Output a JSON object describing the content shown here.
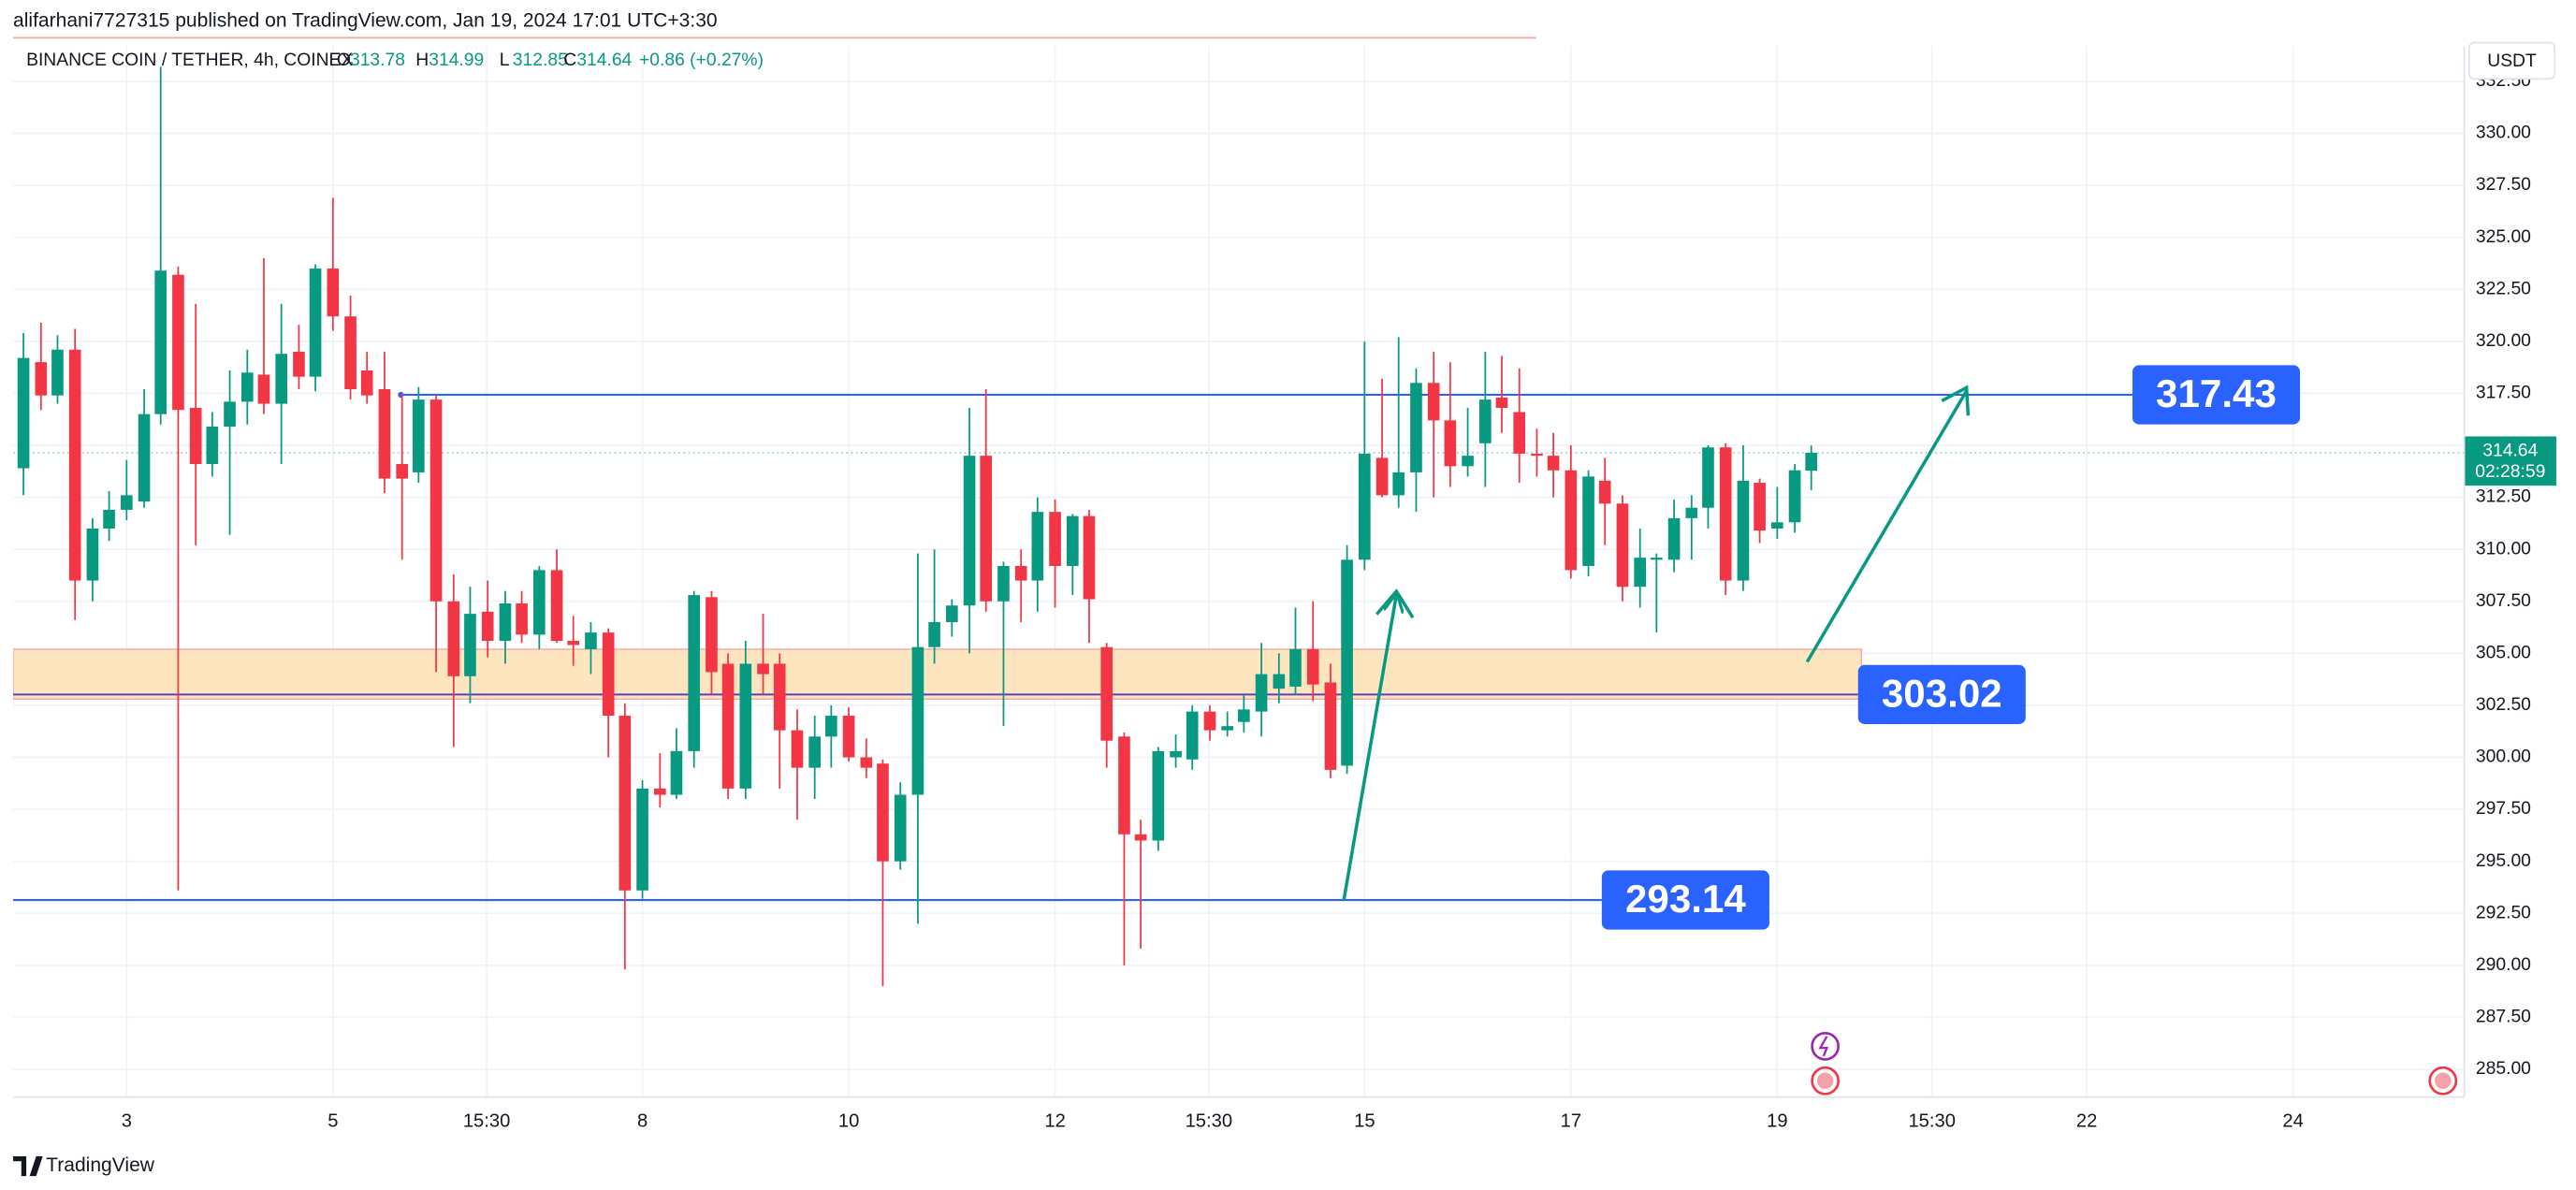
{
  "header": {
    "title": "alifarhani7727315 published on TradingView.com, Jan 19, 2024 17:01 UTC+3:30"
  },
  "chart_data": {
    "type": "candlestick",
    "symbol": "BINANCE COIN / TETHER, 4h, COINEX",
    "ohlc_legend": [
      {
        "label": "O",
        "value": 313.78
      },
      {
        "label": "H",
        "value": 314.99
      },
      {
        "label": "L",
        "value": 312.85
      },
      {
        "label": "C",
        "value": 314.64
      }
    ],
    "change": "+0.86 (+0.27%)",
    "currency": "USDT",
    "up_color": "#089981",
    "down_color": "#f23645",
    "x": [
      2,
      2.17,
      2.33,
      2.5,
      2.67,
      2.83,
      3,
      3.17,
      3.33,
      3.5,
      3.67,
      3.83,
      4,
      4.17,
      4.33,
      4.5,
      4.67,
      4.83,
      5,
      5.17,
      5.33,
      5.5,
      5.67,
      5.83,
      6,
      6.17,
      6.33,
      6.5,
      6.67,
      6.83,
      7,
      7.17,
      7.33,
      7.5,
      7.67,
      7.83,
      8,
      8.17,
      8.33,
      8.5,
      8.67,
      8.83,
      9,
      9.17,
      9.33,
      9.5,
      9.67,
      9.83,
      10,
      10.17,
      10.33,
      10.5,
      10.67,
      10.83,
      11,
      11.17,
      11.33,
      11.5,
      11.67,
      11.83,
      12,
      12.17,
      12.33,
      12.5,
      12.67,
      12.83,
      13,
      13.17,
      13.33,
      13.5,
      13.67,
      13.83,
      14,
      14.17,
      14.33,
      14.5,
      14.67,
      14.83,
      15,
      15.17,
      15.33,
      15.5,
      15.67,
      15.83,
      16,
      16.17,
      16.33,
      16.5,
      16.67,
      16.83,
      17,
      17.17,
      17.33,
      17.5,
      17.67,
      17.83,
      18,
      18.17,
      18.33,
      18.5,
      18.67,
      18.83,
      19,
      19.17,
      19.33
    ],
    "open": [
      313.9,
      319.0,
      317.4,
      319.6,
      308.5,
      311.0,
      311.9,
      312.3,
      316.5,
      323.2,
      316.8,
      314.1,
      315.9,
      317.1,
      318.4,
      317.0,
      319.5,
      318.3,
      323.5,
      321.2,
      318.6,
      317.7,
      314.1,
      313.7,
      317.2,
      307.5,
      303.9,
      307.0,
      305.6,
      307.4,
      305.9,
      309.0,
      305.6,
      305.2,
      306.0,
      302.0,
      293.6,
      298.5,
      298.2,
      300.3,
      307.7,
      304.5,
      298.5,
      304.5,
      304.5,
      301.3,
      299.5,
      301.0,
      302.0,
      300.0,
      299.7,
      295.0,
      298.2,
      305.3,
      306.5,
      307.3,
      314.5,
      307.5,
      309.2,
      308.5,
      311.8,
      309.2,
      311.6,
      305.3,
      301.0,
      296.3,
      296.0,
      300.0,
      299.9,
      302.2,
      301.3,
      301.7,
      302.2,
      303.3,
      303.4,
      305.2,
      303.6,
      299.6,
      309.5,
      314.4,
      312.6,
      313.7,
      318.0,
      316.2,
      314.0,
      315.1,
      317.3,
      316.6,
      314.6,
      314.5,
      313.8,
      309.2,
      313.3,
      312.2,
      308.2,
      309.5,
      309.5,
      311.5,
      312.0,
      314.9,
      308.5,
      313.2,
      311.0,
      311.3,
      313.78
    ],
    "high": [
      320.4,
      320.9,
      320.3,
      320.6,
      311.5,
      312.8,
      314.3,
      317.7,
      333.2,
      323.6,
      321.8,
      316.6,
      318.6,
      319.6,
      324.0,
      321.8,
      320.8,
      323.7,
      326.9,
      322.2,
      319.5,
      319.5,
      317.5,
      317.8,
      317.4,
      308.8,
      308.2,
      308.5,
      308.0,
      308.0,
      309.2,
      310.0,
      306.8,
      306.5,
      306.2,
      302.6,
      298.9,
      300.2,
      301.4,
      308.0,
      308.0,
      305.0,
      305.6,
      306.9,
      305.0,
      302.3,
      302.0,
      302.5,
      302.4,
      300.9,
      299.9,
      298.8,
      309.8,
      310.0,
      307.6,
      316.8,
      317.7,
      309.4,
      310.0,
      312.5,
      312.4,
      311.7,
      311.9,
      305.5,
      301.2,
      297.0,
      300.5,
      301.1,
      302.5,
      302.5,
      302.2,
      303.0,
      305.5,
      305.0,
      307.2,
      307.5,
      304.5,
      310.2,
      320.0,
      318.2,
      320.2,
      318.7,
      319.5,
      319.0,
      316.8,
      319.5,
      319.3,
      318.7,
      315.8,
      315.6,
      315.0,
      313.8,
      314.4,
      312.6,
      311.0,
      309.8,
      312.4,
      312.6,
      315.0,
      315.1,
      315.0,
      313.4,
      313.0,
      314.1,
      314.99
    ],
    "low": [
      312.6,
      316.7,
      317.0,
      306.6,
      307.5,
      310.4,
      311.4,
      312.0,
      316.0,
      293.6,
      310.2,
      313.5,
      310.7,
      316.0,
      316.5,
      314.1,
      317.7,
      317.6,
      320.5,
      317.2,
      317.0,
      312.7,
      309.5,
      313.2,
      304.1,
      300.5,
      302.6,
      304.8,
      304.5,
      305.5,
      305.2,
      305.5,
      304.4,
      304.0,
      300.0,
      289.8,
      293.2,
      297.6,
      298.0,
      299.5,
      303.0,
      298.0,
      298.0,
      303.0,
      298.5,
      297.0,
      298.0,
      299.5,
      299.8,
      299.0,
      289.0,
      294.6,
      292.0,
      304.5,
      305.8,
      305.0,
      307.0,
      301.5,
      306.5,
      307.0,
      307.2,
      307.8,
      305.5,
      299.5,
      290.0,
      290.8,
      295.5,
      299.5,
      299.4,
      300.8,
      301.0,
      301.2,
      301.0,
      302.6,
      303.0,
      302.7,
      299.0,
      299.2,
      309.0,
      312.5,
      312.0,
      311.8,
      312.5,
      313.0,
      313.5,
      313.0,
      315.6,
      313.2,
      313.5,
      312.5,
      308.6,
      308.7,
      310.2,
      307.5,
      307.2,
      306.0,
      308.9,
      309.5,
      311.0,
      307.8,
      308.0,
      310.3,
      310.5,
      310.8,
      312.85
    ],
    "close": [
      319.2,
      317.4,
      319.6,
      308.5,
      311.0,
      311.9,
      312.6,
      316.5,
      323.4,
      316.7,
      314.1,
      315.9,
      317.1,
      318.5,
      317.0,
      319.4,
      318.3,
      323.5,
      321.2,
      317.7,
      317.4,
      313.4,
      313.4,
      317.2,
      307.5,
      303.9,
      306.9,
      305.6,
      307.4,
      305.9,
      309.0,
      305.6,
      305.4,
      306.0,
      302.0,
      293.6,
      298.5,
      298.2,
      300.3,
      307.8,
      304.1,
      298.5,
      304.5,
      304.0,
      301.3,
      299.5,
      301.0,
      302.0,
      300.0,
      299.5,
      295.0,
      298.2,
      305.3,
      306.5,
      307.3,
      314.5,
      307.5,
      309.2,
      308.5,
      311.8,
      309.2,
      311.6,
      307.6,
      300.8,
      296.3,
      296.0,
      300.3,
      300.3,
      302.2,
      301.3,
      301.5,
      302.3,
      304.0,
      304.0,
      305.2,
      303.5,
      299.4,
      309.5,
      314.6,
      312.6,
      313.7,
      318.0,
      316.2,
      314.0,
      314.5,
      317.2,
      316.8,
      314.6,
      314.5,
      313.8,
      309.0,
      313.5,
      312.2,
      308.2,
      309.6,
      309.6,
      311.5,
      312.0,
      314.9,
      308.5,
      313.3,
      310.9,
      311.3,
      313.8,
      314.64
    ],
    "xlim": [
      1.9,
      25.66
    ],
    "xticks": [
      3,
      5,
      {
        "value": 6.49,
        "label": "15:30"
      },
      8,
      10,
      12,
      {
        "value": 13.49,
        "label": "15:30"
      },
      15,
      17,
      19,
      {
        "value": 20.5,
        "label": "15:30"
      },
      22,
      24
    ],
    "ylim": [
      283.66,
      334.2
    ],
    "yticks": [
      {
        "value": 285,
        "label": "285.00"
      },
      {
        "value": 287.5,
        "label": "287.50"
      },
      {
        "value": 290,
        "label": "290.00"
      },
      {
        "value": 292.5,
        "label": "292.50"
      },
      {
        "value": 295,
        "label": "295.00"
      },
      {
        "value": 297.5,
        "label": "297.50"
      },
      {
        "value": 300,
        "label": "300.00"
      },
      {
        "value": 302.5,
        "label": "302.50"
      },
      {
        "value": 305,
        "label": "305.00"
      },
      {
        "value": 307.5,
        "label": "307.50"
      },
      {
        "value": 310,
        "label": "310.00"
      },
      {
        "value": 312.5,
        "label": "312.50"
      },
      {
        "value": 315,
        "label": "315.00"
      },
      {
        "value": 317.5,
        "label": "317.50"
      },
      {
        "value": 320,
        "label": "320.00"
      },
      {
        "value": 322.5,
        "label": "322.50"
      },
      {
        "value": 325,
        "label": "325.00"
      },
      {
        "value": 327.5,
        "label": "327.50"
      },
      {
        "value": 330,
        "label": "330.00"
      },
      {
        "value": 332.5,
        "label": "332.50"
      }
    ],
    "grid": true,
    "last_price": {
      "value": 314.64,
      "countdown": "02:28:59",
      "color": "#089981"
    },
    "levels": [
      {
        "value": 317.43,
        "color": "#2962ff"
      },
      {
        "value": 303.02,
        "color": "#5b3fc4"
      },
      {
        "value": 293.14,
        "color": "#2962ff"
      }
    ],
    "zone": {
      "from": 302.8,
      "to": 305.2,
      "color": "#fde5c0"
    }
  },
  "footer": {
    "brand": "TradingView"
  }
}
